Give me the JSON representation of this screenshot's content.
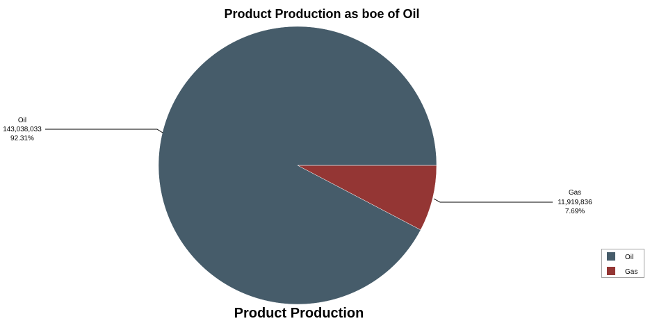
{
  "chart_data": {
    "type": "pie",
    "title": "Product Production as boe of Oil",
    "subtitle": "Product Production",
    "slices": [
      {
        "label": "Oil",
        "value_text": "143,038,033",
        "value": 143038033,
        "percent_text": "92.31%",
        "percent": 92.31,
        "color": "#465c6a"
      },
      {
        "label": "Gas",
        "value_text": "11,919,836",
        "value": 11919836,
        "percent_text": "7.69%",
        "percent": 7.69,
        "color": "#943634"
      }
    ],
    "start_angle_deg": 0,
    "direction": "clockwise",
    "legend_position": "bottom-right",
    "legend": [
      {
        "label": "Oil",
        "color": "#465c6a"
      },
      {
        "label": "Gas",
        "color": "#943634"
      }
    ]
  }
}
